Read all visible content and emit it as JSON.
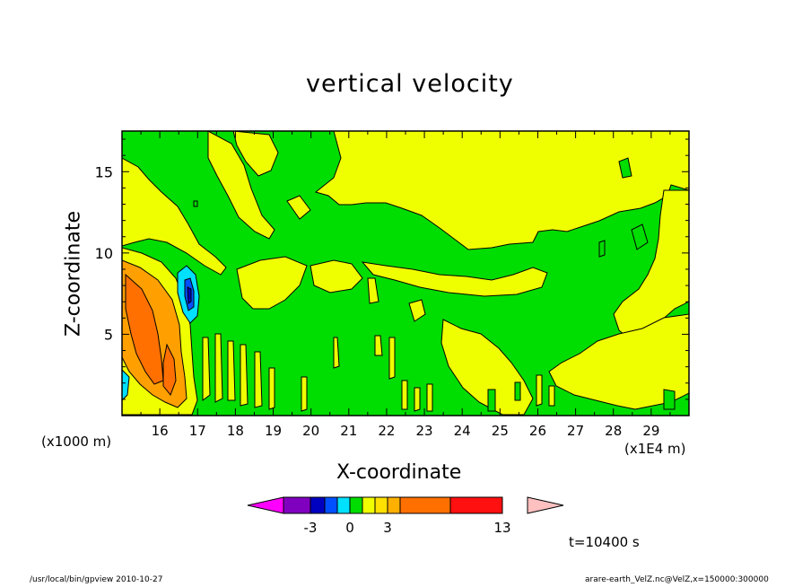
{
  "chart_data": {
    "type": "heatmap",
    "title": "vertical velocity",
    "xlabel": "X-coordinate",
    "ylabel": "Z-coordinate",
    "x_unit_left": "(x1000 m)",
    "x_unit_right": "(x1E4 m)",
    "xlim": [
      15.0,
      30.0
    ],
    "ylim": [
      0.0,
      17.5
    ],
    "x_ticks": [
      16,
      17,
      18,
      19,
      20,
      21,
      22,
      23,
      24,
      25,
      26,
      27,
      28,
      29
    ],
    "y_ticks": [
      5,
      10,
      15
    ],
    "colorbar": {
      "labels": [
        {
          "value": -3,
          "text": "-3"
        },
        {
          "value": 0,
          "text": "0"
        },
        {
          "value": 3,
          "text": "3"
        },
        {
          "value": 13,
          "text": "13"
        }
      ],
      "levels": [
        -5,
        -4,
        -3,
        -2,
        -1,
        0,
        1,
        2,
        3,
        7,
        11,
        13,
        15
      ],
      "colors": [
        "#ff00ff",
        "#8000c0",
        "#0000c0",
        "#0050ff",
        "#00e0ff",
        "#00dd00",
        "#f0ff00",
        "#ffe000",
        "#ffb000",
        "#ff7000",
        "#ff1010",
        "#ff8080",
        "#ffc0c0"
      ]
    }
  },
  "annotations": {
    "time": "t=10400 s",
    "footer_left": "/usr/local/bin/gpview  2010-10-27",
    "footer_right": "arare-earth_VelZ.nc@VelZ,x=150000:300000"
  },
  "colors": {
    "positive_weak": "#f0ff00",
    "near_zero": "#00dd00",
    "orange": "#ffa000",
    "dark_orange": "#ff7000",
    "cyan": "#00e0ff",
    "blue": "#0050ff",
    "dark_blue": "#0000c0"
  }
}
